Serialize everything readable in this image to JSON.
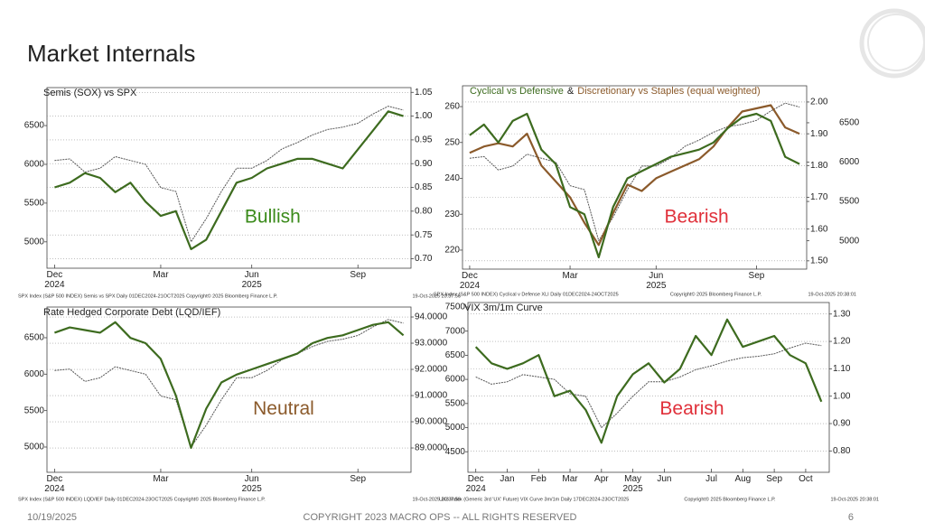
{
  "header": {
    "title": "Market Internals"
  },
  "footer": {
    "date": "10/19/2025",
    "copyright": "COPYRIGHT 2023 MACRO OPS -- ALL RIGHTS RESERVED",
    "page": "6"
  },
  "chart_data": [
    {
      "type": "line",
      "title": "Semis (SOX) vs SPX",
      "categories": [
        "Dec\n2024",
        null,
        null,
        null,
        null,
        null,
        null,
        "Mar",
        null,
        null,
        null,
        null,
        null,
        "Jun\n2025",
        null,
        null,
        null,
        null,
        null,
        null,
        "Sep",
        null,
        null,
        null
      ],
      "series": [
        {
          "color": "#555555",
          "line_style": "dotted",
          "axis": "y",
          "values": [
            6050,
            6070,
            5900,
            5950,
            6100,
            6050,
            6000,
            5700,
            5650,
            5000,
            5300,
            5650,
            5950,
            5950,
            6050,
            6200,
            6280,
            6380,
            6450,
            6480,
            6530,
            6650,
            6750,
            6700
          ]
        },
        {
          "color": "#3d6b1f",
          "line_style": "solid",
          "axis": "y2",
          "values": [
            0.85,
            0.86,
            0.88,
            0.87,
            0.84,
            0.86,
            0.82,
            0.79,
            0.8,
            0.72,
            0.74,
            0.8,
            0.86,
            0.87,
            0.89,
            0.9,
            0.91,
            0.91,
            0.9,
            0.89,
            0.93,
            0.97,
            1.01,
            1.0
          ]
        }
      ],
      "ylim": [
        4660,
        6990
      ],
      "yticks": [
        5000,
        5500,
        6000,
        6500
      ],
      "y2lim": [
        0.68,
        1.06
      ],
      "y2ticks": [
        {
          "value": 0.7,
          "label": "0.70"
        },
        0.75,
        {
          "value": 0.8,
          "label": "0.80"
        },
        0.85,
        {
          "value": 0.9,
          "label": "0.90"
        },
        0.95,
        {
          "value": 1,
          "label": "1.00"
        },
        1.05
      ],
      "grid": "y2",
      "annotation": {
        "text": "Bullish",
        "color": "#3a8a1a"
      },
      "source": [
        "SPX Index (S&P 500 INDEX) Semis vs SPX Daily 01DEC2024-21OCT2025  Copyright© 2025 Bloomberg Finance L.P.",
        "19-Oct-2025 20:37:56"
      ]
    },
    {
      "type": "line",
      "title_parts": [
        {
          "text": "Cyclical vs Defensive",
          "color": "#3d6b1f"
        },
        {
          "text": "&",
          "color": "#222222"
        },
        {
          "text": "Discretionary vs Staples (equal weighted)",
          "color": "#8b5a2b"
        }
      ],
      "categories": [
        "Dec\n2024",
        null,
        null,
        null,
        null,
        null,
        null,
        "Mar",
        null,
        null,
        null,
        null,
        null,
        "Jun\n2025",
        null,
        null,
        null,
        null,
        null,
        null,
        "Sep",
        null,
        null,
        null
      ],
      "series": [
        {
          "color": "#555555",
          "line_style": "dotted",
          "axis": "y3",
          "values": [
            6050,
            6070,
            5900,
            5950,
            6100,
            6050,
            6000,
            5700,
            5650,
            5000,
            5300,
            5650,
            5950,
            5950,
            6050,
            6200,
            6280,
            6380,
            6450,
            6480,
            6530,
            6650,
            6750,
            6700
          ]
        },
        {
          "color": "#8b5a2b",
          "line_style": "solid",
          "axis": "y2",
          "values": [
            1.84,
            1.86,
            1.87,
            1.86,
            1.9,
            1.8,
            1.75,
            1.7,
            1.62,
            1.55,
            1.65,
            1.74,
            1.72,
            1.76,
            1.78,
            1.8,
            1.82,
            1.86,
            1.92,
            1.97,
            1.98,
            1.99,
            1.92,
            1.9
          ]
        },
        {
          "color": "#3d6b1f",
          "line_style": "solid",
          "axis": "y",
          "values": [
            252,
            255,
            250,
            256,
            258,
            248,
            244,
            232,
            230,
            218,
            232,
            240,
            242,
            244,
            246,
            247,
            248,
            250,
            254,
            257,
            258,
            256,
            246,
            244
          ]
        }
      ],
      "ylim": [
        214.7,
        265.8
      ],
      "yticks": [
        220,
        230,
        240,
        250,
        260
      ],
      "y2lim": [
        1.474,
        2.051
      ],
      "y2ticks": [
        {
          "value": 1.5,
          "label": "1.50"
        },
        {
          "value": 1.6,
          "label": "1.60"
        },
        {
          "value": 1.7,
          "label": "1.70"
        },
        {
          "value": 1.8,
          "label": "1.80"
        },
        {
          "value": 1.9,
          "label": "1.90"
        },
        {
          "value": 2,
          "label": "2.00"
        }
      ],
      "y3lim": [
        4640,
        6970
      ],
      "y3ticks": [
        5000,
        5500,
        6000,
        6500
      ],
      "grid": "y2",
      "annotation": {
        "text": "Bearish",
        "color": "#e0303a"
      },
      "source": [
        "SPX Index (S&P 500 INDEX) Cyclical v Defense XLI Daily 01DEC2024-24OCT2025",
        "Copyright© 2025 Bloomberg Finance L.P.",
        "19-Oct-2025 20:38:01"
      ]
    },
    {
      "type": "line",
      "title": "Rate Hedged Corporate Debt (LQD/IEF)",
      "categories": [
        "Dec\n2024",
        null,
        null,
        null,
        null,
        null,
        null,
        "Mar",
        null,
        null,
        null,
        null,
        null,
        "Jun\n2025",
        null,
        null,
        null,
        null,
        null,
        null,
        "Sep",
        null,
        null,
        null
      ],
      "series": [
        {
          "color": "#555555",
          "line_style": "dotted",
          "axis": "y",
          "values": [
            6050,
            6070,
            5900,
            5950,
            6100,
            6050,
            6000,
            5700,
            5650,
            5000,
            5300,
            5650,
            5950,
            5950,
            6050,
            6200,
            6280,
            6380,
            6450,
            6480,
            6530,
            6650,
            6750,
            6700
          ]
        },
        {
          "color": "#3d6b1f",
          "line_style": "solid",
          "axis": "y2",
          "values": [
            93.4,
            93.6,
            93.5,
            93.4,
            93.8,
            93.2,
            93.0,
            92.4,
            91.0,
            89.0,
            90.5,
            91.5,
            91.8,
            92.0,
            92.2,
            92.4,
            92.6,
            93.0,
            93.2,
            93.3,
            93.5,
            93.7,
            93.8,
            93.3
          ]
        }
      ],
      "ylim": [
        4653,
        6921
      ],
      "yticks": [
        5000,
        5500,
        6000,
        6500
      ],
      "y2lim": [
        88.07,
        94.38
      ],
      "y2ticks": [
        {
          "value": 89,
          "label": "89.0000"
        },
        {
          "value": 90,
          "label": "90.0000"
        },
        {
          "value": 91,
          "label": "91.0000"
        },
        {
          "value": 92,
          "label": "92.0000"
        },
        {
          "value": 93,
          "label": "93.0000"
        },
        {
          "value": 94,
          "label": "94.0000"
        }
      ],
      "grid": "y2",
      "annotation": {
        "text": "Neutral",
        "color": "#8b5a2b"
      },
      "source": [
        "SPX Index (S&P 500 INDEX) LQD/IEF Daily 01DEC2024-23OCT2025  Copyright© 2025 Bloomberg Finance L.P.",
        "19-Oct-2025 20:37:58"
      ]
    },
    {
      "type": "line",
      "title": "VIX 3m/1m Curve",
      "categories": [
        "Dec\n2024",
        null,
        "Jan",
        null,
        "Feb",
        null,
        "Mar",
        null,
        "Apr",
        null,
        "May\n2025",
        null,
        "Jun",
        null,
        null,
        "Jul",
        null,
        "Aug",
        null,
        "Sep",
        null,
        "Oct",
        null
      ],
      "series": [
        {
          "color": "#555555",
          "line_style": "dotted",
          "axis": "y",
          "values": [
            6050,
            5900,
            5950,
            6100,
            6050,
            6000,
            5700,
            5650,
            5000,
            5300,
            5650,
            5950,
            5950,
            6050,
            6200,
            6280,
            6380,
            6450,
            6480,
            6530,
            6650,
            6750,
            6700
          ]
        },
        {
          "color": "#3d6b1f",
          "line_style": "solid",
          "axis": "y2",
          "values": [
            1.18,
            1.12,
            1.1,
            1.12,
            1.15,
            1.0,
            1.02,
            0.95,
            0.83,
            1.0,
            1.08,
            1.12,
            1.05,
            1.1,
            1.22,
            1.15,
            1.28,
            1.18,
            1.2,
            1.22,
            1.15,
            1.12,
            0.98
          ]
        }
      ],
      "ylim": [
        4074,
        7593
      ],
      "yticks": [
        4500,
        5000,
        5500,
        6000,
        6500,
        7000,
        7500
      ],
      "y2lim": [
        0.722,
        1.342
      ],
      "y2ticks": [
        {
          "value": 0.8,
          "label": "0.80"
        },
        {
          "value": 0.9,
          "label": "0.90"
        },
        {
          "value": 1,
          "label": "1.00"
        },
        {
          "value": 1.1,
          "label": "1.10"
        },
        {
          "value": 1.2,
          "label": "1.20"
        },
        {
          "value": 1.3,
          "label": "1.30"
        }
      ],
      "grid": "y2",
      "annotation": {
        "text": "Bearish",
        "color": "#e0303a"
      },
      "source": [
        "UX3 Index (Generic 3rd 'UX' Future) VIX Curve 3m/1m Daily 17DEC2024-23OCT2025",
        "Copyright© 2025 Bloomberg Finance L.P.",
        "19-Oct-2025 20:38:01"
      ]
    }
  ]
}
